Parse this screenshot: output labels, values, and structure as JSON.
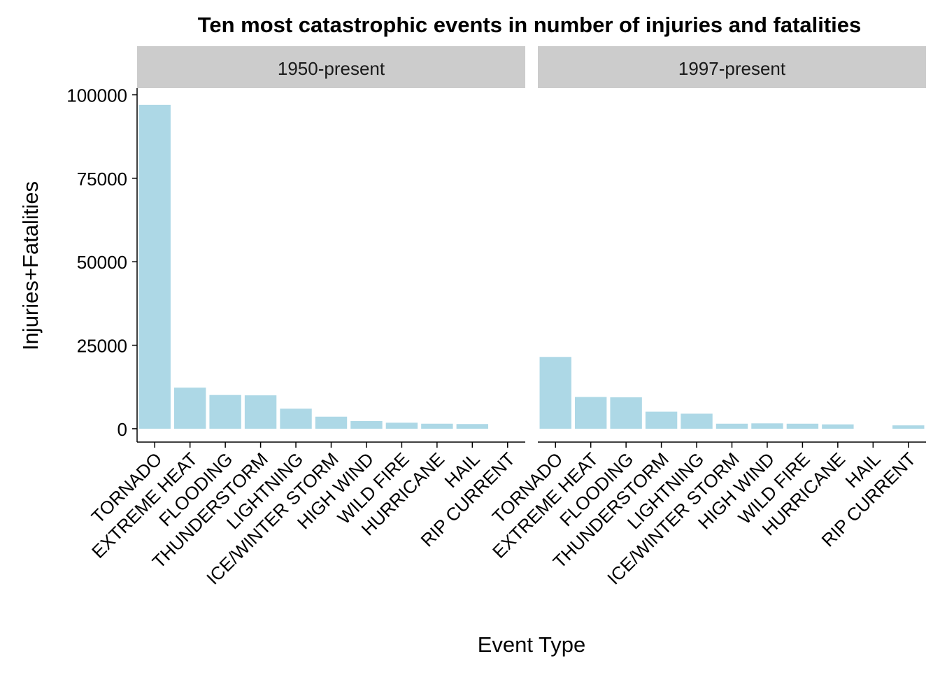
{
  "chart_data": {
    "type": "bar",
    "title": "Ten most catastrophic events in number of injuries and fatalities",
    "xlabel": "Event Type",
    "ylabel": "Injuries+Fatalities",
    "ylim": [
      -4000,
      102000
    ],
    "yticks": [
      0,
      25000,
      50000,
      75000,
      100000
    ],
    "ytick_labels": [
      "0",
      "25000",
      "50000",
      "75000",
      "100000"
    ],
    "categories": [
      "TORNADO",
      "EXTREME HEAT",
      "FLOODING",
      "THUNDERSTORM",
      "LIGHTNING",
      "ICE/WINTER STORM",
      "HIGH WIND",
      "WILD FIRE",
      "HURRICANE",
      "HAIL",
      "RIP CURRENT"
    ],
    "bar_color": "#add8e6",
    "strip_color": "#cccccc",
    "grid": false,
    "legend": "none",
    "panels": [
      {
        "label": "1950-present",
        "values": [
          97000,
          12300,
          10100,
          10000,
          6000,
          3600,
          2300,
          1800,
          1500,
          1400,
          null
        ]
      },
      {
        "label": "1997-present",
        "values": [
          21500,
          9500,
          9400,
          5100,
          4500,
          1500,
          1600,
          1500,
          1300,
          null,
          1000
        ]
      }
    ]
  }
}
